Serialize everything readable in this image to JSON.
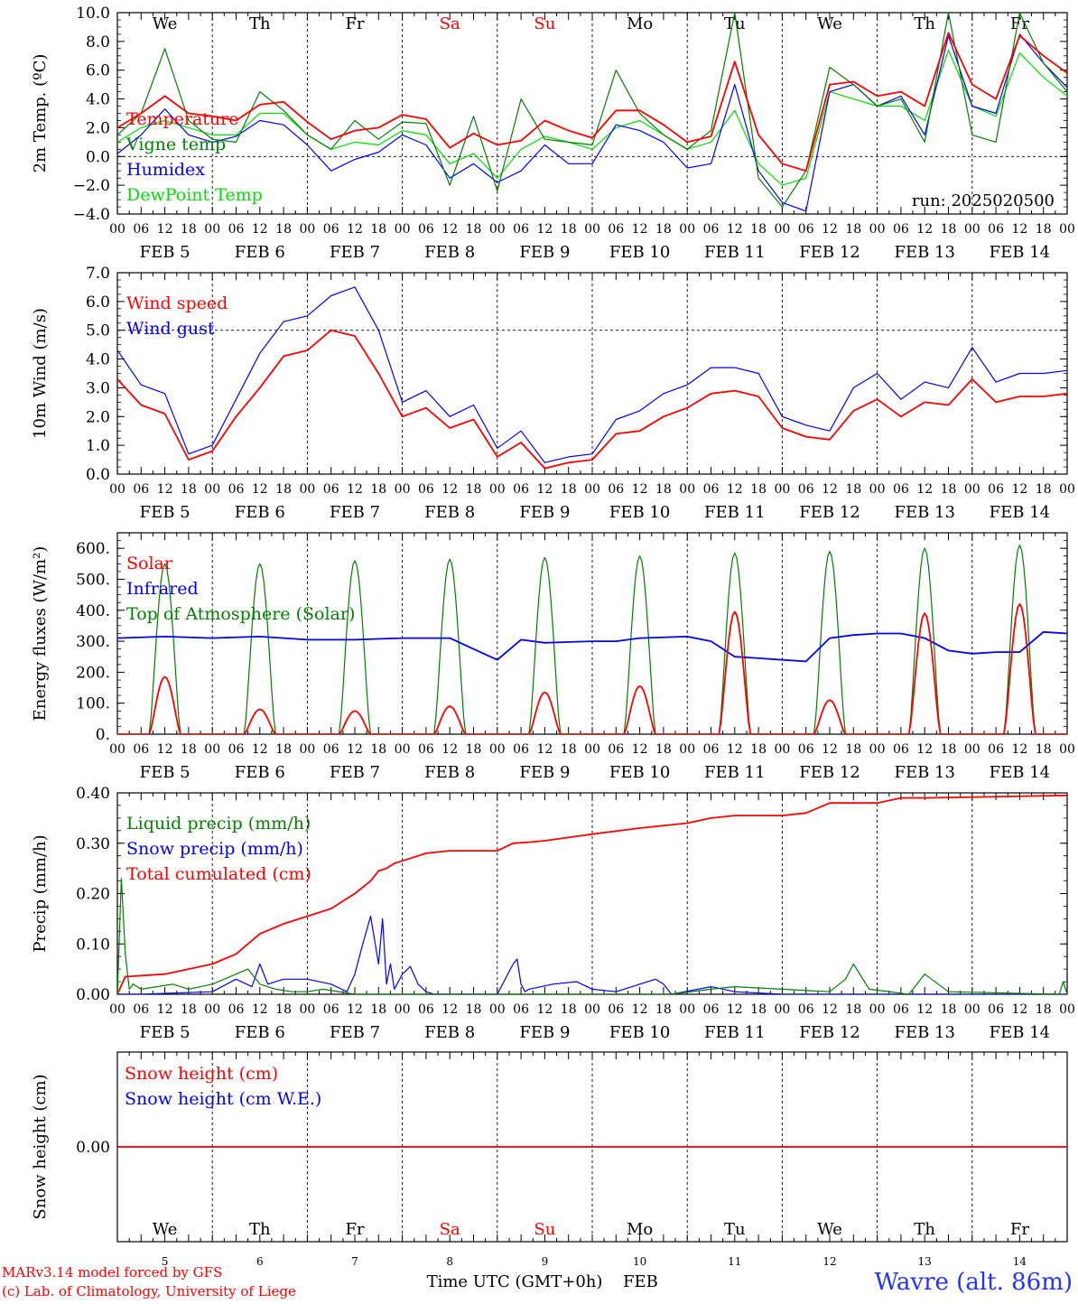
{
  "run_label": "run: 2025020500",
  "footer": {
    "credit_line1": "MARv3.14 model forced by GFS",
    "credit_line2": "(c) Lab. of Climatology, University of Liege",
    "xlabel": "Time UTC (GMT+0h)",
    "month": "FEB",
    "location": "Wavre (alt. 86m)"
  },
  "colors": {
    "red": "#ff0000",
    "dark_green": "#008000",
    "blue": "#0000ff",
    "light_green": "#00e000",
    "weekend": "#ff0000"
  },
  "days": [
    {
      "abbr": "We",
      "date": "FEB  5",
      "num": "5",
      "weekend": false
    },
    {
      "abbr": "Th",
      "date": "FEB  6",
      "num": "6",
      "weekend": false
    },
    {
      "abbr": "Fr",
      "date": "FEB  7",
      "num": "7",
      "weekend": false
    },
    {
      "abbr": "Sa",
      "date": "FEB  8",
      "num": "8",
      "weekend": true
    },
    {
      "abbr": "Su",
      "date": "FEB  9",
      "num": "9",
      "weekend": true
    },
    {
      "abbr": "Mo",
      "date": "FEB 10",
      "num": "10",
      "weekend": false
    },
    {
      "abbr": "Tu",
      "date": "FEB 11",
      "num": "11",
      "weekend": false
    },
    {
      "abbr": "We",
      "date": "FEB 12",
      "num": "12",
      "weekend": false
    },
    {
      "abbr": "Th",
      "date": "FEB 13",
      "num": "13",
      "weekend": false
    },
    {
      "abbr": "Fr",
      "date": "FEB 14",
      "num": "14",
      "weekend": false
    }
  ],
  "hour_labels": [
    "00",
    "06",
    "12",
    "18"
  ],
  "chart_data": [
    {
      "type": "line",
      "ylabel": "2m Temp. (ºC)",
      "ylim": [
        -4,
        10
      ],
      "yticks": [
        "−4.0",
        "−2.0",
        "0.0",
        "2.0",
        "4.0",
        "6.0",
        "8.0",
        "10.0"
      ],
      "ref_lines": [
        0
      ],
      "x_unit": "hours since FEB 5 00 UTC",
      "series": [
        {
          "name": "Temperature",
          "color": "red",
          "x": [
            0,
            6,
            12,
            18,
            24,
            30,
            36,
            42,
            48,
            54,
            60,
            66,
            72,
            78,
            84,
            90,
            96,
            102,
            108,
            114,
            120,
            126,
            132,
            138,
            144,
            150,
            156,
            162,
            168,
            174,
            180,
            186,
            192,
            198,
            204,
            210,
            216,
            222,
            228,
            234,
            240
          ],
          "y": [
            2.0,
            3.0,
            4.2,
            3.0,
            2.8,
            2.5,
            3.6,
            3.8,
            2.4,
            1.2,
            1.8,
            2.0,
            2.9,
            2.6,
            0.6,
            1.6,
            0.8,
            1.1,
            2.5,
            1.8,
            1.3,
            3.2,
            3.2,
            2.2,
            1.0,
            1.4,
            6.6,
            1.5,
            -0.5,
            -1.0,
            5.0,
            5.2,
            4.2,
            4.5,
            3.5,
            8.6,
            5.0,
            4.0,
            8.4,
            7.0,
            5.8
          ]
        },
        {
          "name": "Vigne temp",
          "color": "dark_green",
          "x": [
            0,
            6,
            12,
            18,
            24,
            30,
            36,
            42,
            48,
            54,
            60,
            66,
            72,
            78,
            84,
            90,
            96,
            102,
            108,
            114,
            120,
            126,
            132,
            138,
            144,
            150,
            156,
            162,
            168,
            174,
            180,
            186,
            192,
            198,
            204,
            210,
            216,
            222,
            228,
            234,
            240
          ],
          "y": [
            1.5,
            3.0,
            7.5,
            2.5,
            1.2,
            1.0,
            4.5,
            3.2,
            1.5,
            0.5,
            2.5,
            1.2,
            2.4,
            2.3,
            -2.0,
            2.8,
            -2.4,
            4.0,
            1.2,
            1.0,
            0.8,
            6.0,
            3.0,
            1.5,
            0.5,
            1.8,
            10.0,
            -1.5,
            -3.5,
            -1.0,
            6.2,
            5.0,
            3.5,
            4.0,
            1.0,
            10.0,
            1.5,
            1.0,
            10.0,
            6.5,
            4.5
          ]
        },
        {
          "name": "Humidex",
          "color": "blue",
          "x": [
            0,
            6,
            12,
            18,
            24,
            30,
            36,
            42,
            48,
            54,
            60,
            66,
            72,
            78,
            84,
            90,
            96,
            102,
            108,
            114,
            120,
            126,
            132,
            138,
            144,
            150,
            156,
            162,
            168,
            174,
            180,
            186,
            192,
            198,
            204,
            210,
            216,
            222,
            228,
            234,
            240
          ],
          "y": [
            0.2,
            1.5,
            3.3,
            1.5,
            1.0,
            1.4,
            2.5,
            2.2,
            0.8,
            -1.0,
            -0.2,
            0.3,
            1.5,
            0.8,
            -1.5,
            -0.5,
            -1.8,
            -1.0,
            0.8,
            -0.5,
            -0.5,
            2.2,
            1.8,
            1.0,
            -0.8,
            -0.5,
            5.0,
            -1.0,
            -3.2,
            -3.8,
            4.5,
            5.0,
            3.5,
            4.2,
            1.5,
            8.4,
            3.5,
            3.0,
            8.5,
            6.5,
            4.8
          ]
        },
        {
          "name": "DewPoint Temp",
          "color": "light_green",
          "x": [
            0,
            6,
            12,
            18,
            24,
            30,
            36,
            42,
            48,
            54,
            60,
            66,
            72,
            78,
            84,
            90,
            96,
            102,
            108,
            114,
            120,
            126,
            132,
            138,
            144,
            150,
            156,
            162,
            168,
            174,
            180,
            186,
            192,
            198,
            204,
            210,
            216,
            222,
            228,
            234,
            240
          ],
          "y": [
            1.0,
            2.0,
            2.5,
            2.0,
            1.5,
            1.5,
            3.0,
            3.0,
            1.5,
            0.5,
            1.0,
            0.8,
            1.8,
            1.5,
            -0.5,
            0.2,
            -1.5,
            0.5,
            1.4,
            1.0,
            0.5,
            2.0,
            2.5,
            1.5,
            0.5,
            1.0,
            3.2,
            -0.5,
            -2.0,
            -1.5,
            4.5,
            4.0,
            3.5,
            3.5,
            2.5,
            7.4,
            3.5,
            2.8,
            7.2,
            5.5,
            4.2
          ]
        }
      ]
    },
    {
      "type": "line",
      "ylabel": "10m Wind (m/s)",
      "ylim": [
        0,
        7
      ],
      "yticks": [
        "0.0",
        "1.0",
        "2.0",
        "3.0",
        "4.0",
        "5.0",
        "6.0",
        "7.0"
      ],
      "ref_lines": [
        5
      ],
      "x_unit": "hours since FEB 5 00 UTC",
      "series": [
        {
          "name": "Wind speed",
          "color": "red",
          "x": [
            0,
            6,
            12,
            18,
            24,
            30,
            36,
            42,
            48,
            54,
            60,
            66,
            72,
            78,
            84,
            90,
            96,
            102,
            108,
            114,
            120,
            126,
            132,
            138,
            144,
            150,
            156,
            162,
            168,
            174,
            180,
            186,
            192,
            198,
            204,
            210,
            216,
            222,
            228,
            234,
            240
          ],
          "y": [
            3.3,
            2.4,
            2.1,
            0.5,
            0.8,
            2.0,
            3.0,
            4.1,
            4.3,
            5.0,
            4.8,
            3.5,
            2.0,
            2.3,
            1.6,
            1.9,
            0.6,
            1.1,
            0.2,
            0.4,
            0.5,
            1.4,
            1.5,
            2.0,
            2.3,
            2.8,
            2.9,
            2.7,
            1.6,
            1.3,
            1.2,
            2.2,
            2.6,
            2.0,
            2.5,
            2.4,
            3.3,
            2.5,
            2.7,
            2.7,
            2.8
          ]
        },
        {
          "name": "Wind gust",
          "color": "blue",
          "x": [
            0,
            6,
            12,
            18,
            24,
            30,
            36,
            42,
            48,
            54,
            60,
            66,
            72,
            78,
            84,
            90,
            96,
            102,
            108,
            114,
            120,
            126,
            132,
            138,
            144,
            150,
            156,
            162,
            168,
            174,
            180,
            186,
            192,
            198,
            204,
            210,
            216,
            222,
            228,
            234,
            240
          ],
          "y": [
            4.3,
            3.1,
            2.8,
            0.7,
            1.0,
            2.6,
            4.2,
            5.3,
            5.5,
            6.2,
            6.5,
            5.0,
            2.5,
            2.9,
            2.0,
            2.4,
            0.9,
            1.5,
            0.4,
            0.6,
            0.7,
            1.9,
            2.2,
            2.8,
            3.1,
            3.7,
            3.7,
            3.5,
            2.0,
            1.7,
            1.5,
            3.0,
            3.5,
            2.6,
            3.2,
            3.0,
            4.4,
            3.2,
            3.5,
            3.5,
            3.6
          ]
        }
      ]
    },
    {
      "type": "line",
      "ylabel": "Energy fluxes (W/m²)",
      "ylim": [
        0,
        650
      ],
      "yticks": [
        "0.",
        "100.",
        "200.",
        "300.",
        "400.",
        "500.",
        "600."
      ],
      "ref_lines": [],
      "x_unit": "hours since FEB 5 00 UTC",
      "series": [
        {
          "name": "Solar",
          "color": "red",
          "peaks": [
            185,
            80,
            75,
            90,
            135,
            155,
            395,
            110,
            390,
            420
          ]
        },
        {
          "name": "Infrared",
          "color": "blue",
          "x": [
            0,
            12,
            24,
            36,
            48,
            60,
            72,
            84,
            96,
            102,
            108,
            120,
            126,
            132,
            144,
            150,
            156,
            162,
            168,
            174,
            180,
            186,
            192,
            198,
            204,
            210,
            216,
            222,
            228,
            234,
            240
          ],
          "y": [
            310,
            315,
            310,
            315,
            305,
            305,
            310,
            310,
            240,
            305,
            295,
            300,
            300,
            310,
            315,
            300,
            250,
            245,
            240,
            235,
            310,
            320,
            325,
            325,
            310,
            270,
            260,
            265,
            265,
            330,
            325
          ]
        },
        {
          "name": "Top of Atmosphere (Solar)",
          "color": "dark_green",
          "peaks": [
            550,
            550,
            560,
            565,
            570,
            575,
            585,
            590,
            600,
            610
          ]
        }
      ]
    },
    {
      "type": "line",
      "ylabel": "Precip (mm/h)",
      "ylim": [
        0,
        0.4
      ],
      "yticks": [
        "0.00",
        "0.10",
        "0.20",
        "0.30",
        "0.40"
      ],
      "ref_lines": [],
      "x_unit": "hours since FEB 5 00 UTC",
      "series": [
        {
          "name": "Liquid precip (mm/h)",
          "color": "dark_green",
          "x": [
            0,
            1,
            2,
            3,
            4,
            6,
            10,
            14,
            18,
            24,
            27,
            30,
            33,
            36,
            40,
            44,
            48,
            52,
            60,
            70,
            80,
            100,
            140,
            150,
            156,
            180,
            184,
            186,
            190,
            200,
            204,
            210,
            238,
            239,
            240
          ],
          "y": [
            0.0,
            0.23,
            0.08,
            0.01,
            0.02,
            0.01,
            0.015,
            0.02,
            0.01,
            0.02,
            0.03,
            0.04,
            0.05,
            0.02,
            0.01,
            0.005,
            0.005,
            0.01,
            0.0,
            0.0,
            0.0,
            0.0,
            0.0,
            0.01,
            0.015,
            0.005,
            0.03,
            0.06,
            0.01,
            0.0,
            0.04,
            0.005,
            0.0,
            0.025,
            0.0
          ]
        },
        {
          "name": "Snow precip (mm/h)",
          "color": "blue",
          "x": [
            0,
            6,
            24,
            30,
            34,
            36,
            38,
            42,
            48,
            54,
            58,
            60,
            62,
            64,
            66,
            67,
            68,
            69,
            70,
            72,
            74,
            76,
            78,
            80,
            96,
            100,
            101,
            102,
            103,
            104,
            110,
            116,
            120,
            126,
            136,
            138,
            140,
            150,
            156,
            168,
            240
          ],
          "y": [
            0.0,
            0.0,
            0.005,
            0.03,
            0.015,
            0.06,
            0.02,
            0.03,
            0.03,
            0.02,
            0.005,
            0.04,
            0.1,
            0.155,
            0.06,
            0.15,
            0.02,
            0.06,
            0.01,
            0.04,
            0.055,
            0.02,
            0.005,
            0.0,
            0.0,
            0.06,
            0.07,
            0.02,
            0.005,
            0.01,
            0.02,
            0.025,
            0.01,
            0.005,
            0.03,
            0.02,
            0.0,
            0.015,
            0.005,
            0.0,
            0.0
          ]
        },
        {
          "name": "Total cumulated (cm)",
          "color": "red",
          "x": [
            0,
            2,
            12,
            24,
            30,
            36,
            42,
            48,
            54,
            60,
            64,
            66,
            68,
            70,
            72,
            78,
            84,
            96,
            100,
            104,
            108,
            120,
            132,
            144,
            150,
            156,
            168,
            174,
            180,
            192,
            198,
            204,
            240
          ],
          "y": [
            0.0,
            0.035,
            0.04,
            0.06,
            0.08,
            0.12,
            0.14,
            0.155,
            0.17,
            0.2,
            0.225,
            0.245,
            0.25,
            0.26,
            0.265,
            0.28,
            0.285,
            0.285,
            0.3,
            0.302,
            0.305,
            0.318,
            0.33,
            0.34,
            0.35,
            0.355,
            0.355,
            0.36,
            0.38,
            0.38,
            0.39,
            0.39,
            0.395
          ]
        }
      ]
    },
    {
      "type": "line",
      "ylabel": "Snow height (cm)",
      "ylim": [
        -1,
        1
      ],
      "yticks": [
        "0.00"
      ],
      "ref_lines": [],
      "x_unit": "hours since FEB 5 00 UTC",
      "series": [
        {
          "name": "Snow height (cm)",
          "color": "red",
          "x": [
            0,
            240
          ],
          "y": [
            0,
            0
          ]
        },
        {
          "name": "Snow height (cm W.E.)",
          "color": "blue",
          "x": [
            0,
            240
          ],
          "y": [
            0,
            0
          ]
        }
      ]
    }
  ]
}
